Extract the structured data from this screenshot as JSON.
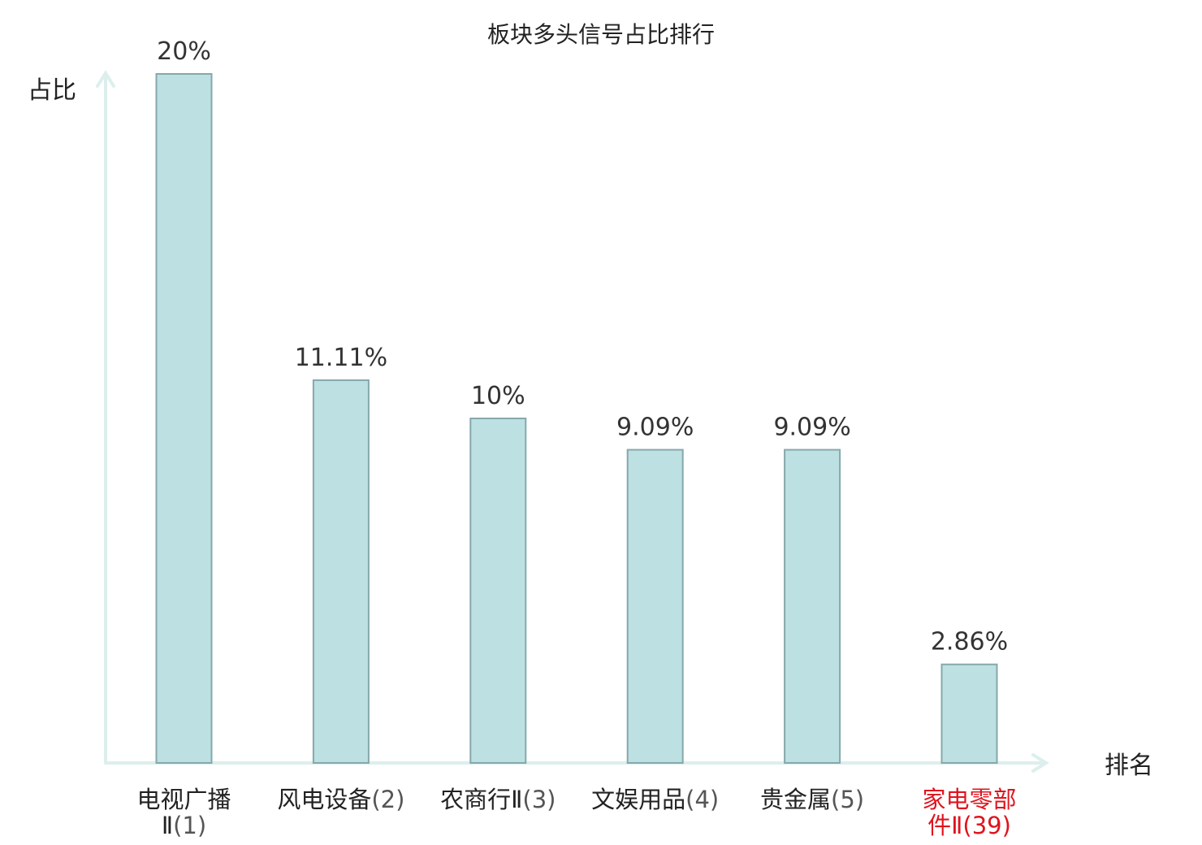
{
  "chart_data": {
    "type": "bar",
    "title": "板块多头信号占比排行",
    "xlabel": "排名",
    "ylabel": "占比",
    "ylim": [
      0,
      20
    ],
    "grid": false,
    "legend": "none",
    "categories": [
      {
        "name": "电视广播Ⅱ",
        "rank": "(1)"
      },
      {
        "name": "风电设备",
        "rank": "(2)"
      },
      {
        "name": "农商行Ⅱ",
        "rank": "(3)"
      },
      {
        "name": "文娱用品",
        "rank": "(4)"
      },
      {
        "name": "贵金属",
        "rank": "(5)"
      },
      {
        "name": "家电零部件Ⅱ",
        "rank": "(39)"
      }
    ],
    "values": [
      20,
      11.11,
      10,
      9.09,
      9.09,
      2.86
    ],
    "value_labels": [
      "20%",
      "11.11%",
      "10%",
      "9.09%",
      "9.09%",
      "2.86%"
    ],
    "highlight_index": 5
  },
  "colors": {
    "bar_fill": "#bde0e3",
    "bar_stroke": "#86a8ab",
    "axis": "#dcefec",
    "highlight": "#e0141e"
  }
}
